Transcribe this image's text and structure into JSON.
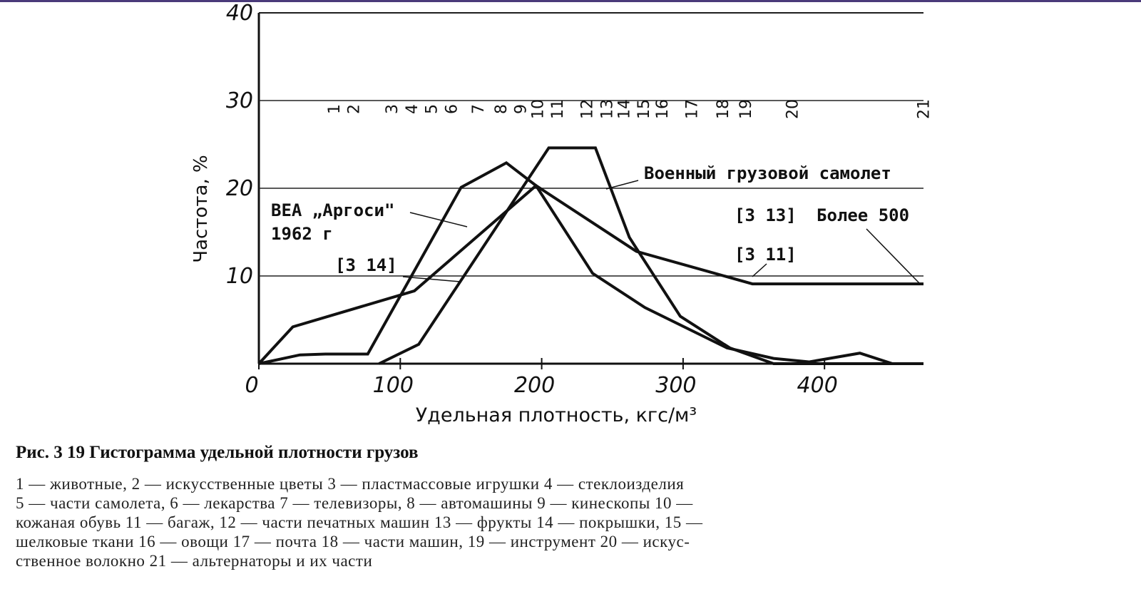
{
  "chart_data": {
    "type": "line",
    "xlabel": "Удельная плотность, кгс/м³",
    "ylabel": "Частота, %",
    "xlim": [
      0,
      470
    ],
    "ylim": [
      0,
      40
    ],
    "xticks": [
      0,
      100,
      200,
      300,
      400
    ],
    "yticks": [
      10,
      20,
      30,
      40
    ],
    "grid": true,
    "color": "#111",
    "series": [
      {
        "color": "#111",
        "x": [
          0,
          24,
          110,
          196,
          267,
          349,
          470
        ],
        "values": [
          0,
          4.2,
          8.3,
          20.3,
          12.8,
          9.1,
          9.1
        ]
      },
      {
        "color": "#111",
        "x": [
          0,
          29,
          47,
          77,
          143,
          175,
          196,
          236,
          273,
          331,
          364,
          389,
          425,
          448,
          470
        ],
        "values": [
          0,
          1,
          1.1,
          1.1,
          20.1,
          22.9,
          20.3,
          10.3,
          6.4,
          1.8,
          0.6,
          0.2,
          1.2,
          0,
          0
        ]
      },
      {
        "color": "#111",
        "x": [
          85,
          113,
          205,
          238,
          262,
          298,
          333,
          364,
          470
        ],
        "values": [
          0,
          2.2,
          24.6,
          24.6,
          14.4,
          5.4,
          1.8,
          0,
          0
        ]
      }
    ],
    "product_markers": [
      {
        "label": "1",
        "x": 53
      },
      {
        "label": "2",
        "x": 67
      },
      {
        "label": "3",
        "x": 94
      },
      {
        "label": "4",
        "x": 108
      },
      {
        "label": "5",
        "x": 122
      },
      {
        "label": "6",
        "x": 136
      },
      {
        "label": "7",
        "x": 155
      },
      {
        "label": "8",
        "x": 171
      },
      {
        "label": "9",
        "x": 185
      },
      {
        "label": "10",
        "x": 197
      },
      {
        "label": "11",
        "x": 211
      },
      {
        "label": "12",
        "x": 232
      },
      {
        "label": "13",
        "x": 246
      },
      {
        "label": "14",
        "x": 258
      },
      {
        "label": "15",
        "x": 272
      },
      {
        "label": "16",
        "x": 285
      },
      {
        "label": "17",
        "x": 306
      },
      {
        "label": "18",
        "x": 328
      },
      {
        "label": "19",
        "x": 344
      },
      {
        "label": "20",
        "x": 377
      },
      {
        "label": "21",
        "x": 470
      }
    ],
    "annotations": [
      "Военный грузовой самолет",
      "ВЕА „Аргоси\"",
      "1962 г",
      "[3 14]",
      "[3 13]",
      "[3 11]",
      "Более 500"
    ]
  },
  "caption": "Рис. 3 19  Гистограмма удельной плотности грузов",
  "legend_lines": [
    "1 — животные, 2 — искусственные цветы  3 — пластмассовые  игрушки   4 — стеклоизделия",
    "5 — части самолета, 6 — лекарства  7 — телевизоры, 8 — автомашины  9 — кинескопы  10 —",
    "кожаная обувь  11 — багаж, 12 — части печатных машин  13 — фрукты  14 — покрышки, 15 —",
    "шелковые ткани  16 — овощи  17 — почта  18 — части машин, 19 — инструмент  20 — искус-",
    "ственное волокно  21 — альтернаторы и их части"
  ]
}
